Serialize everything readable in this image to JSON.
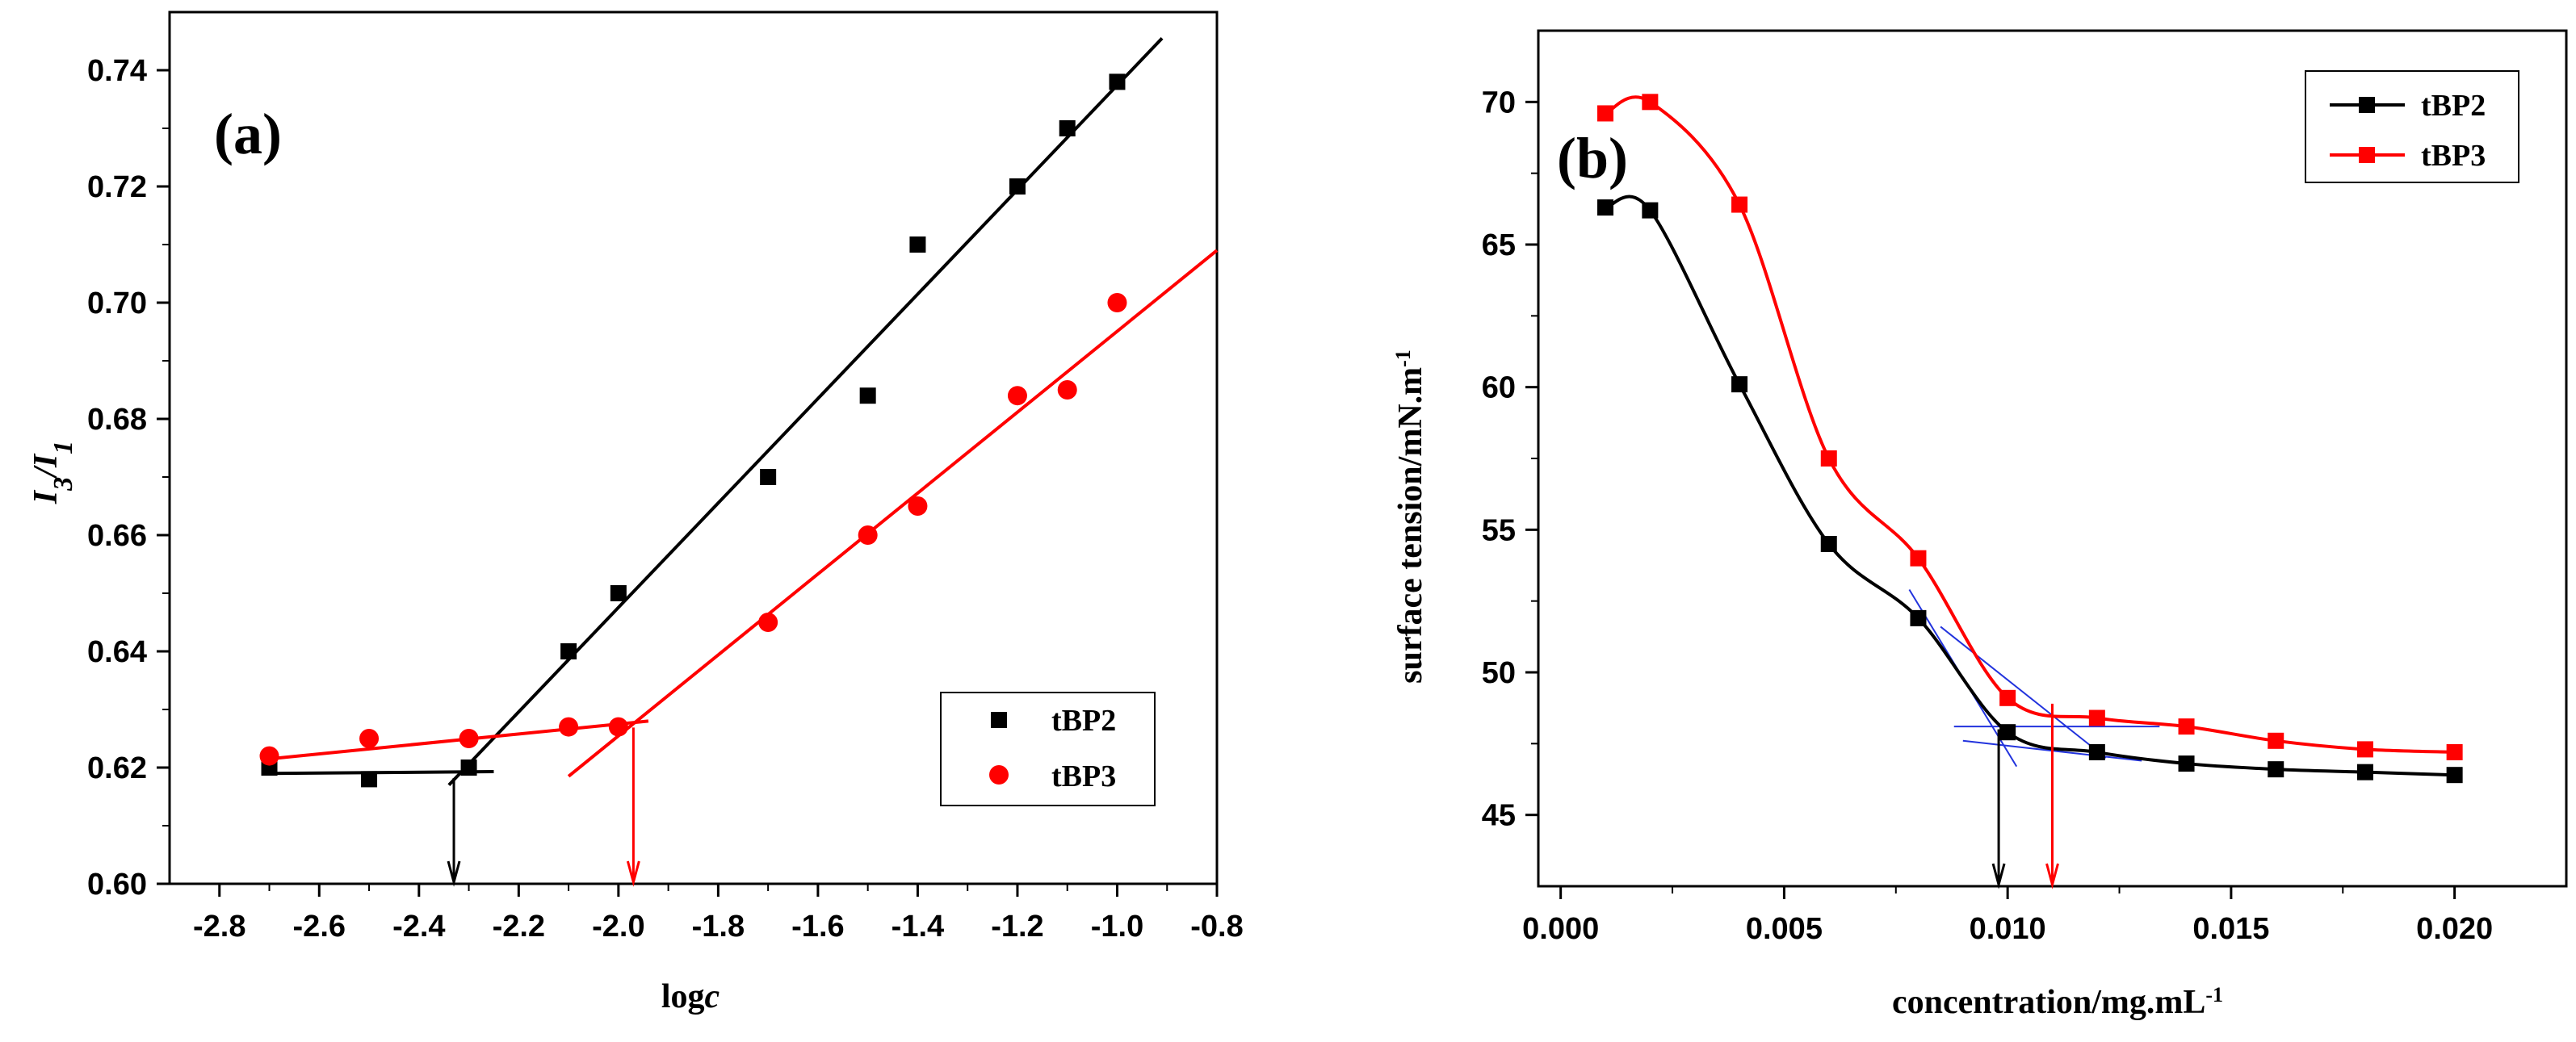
{
  "chart_data": [
    {
      "type": "scatter",
      "panel_label": "(a)",
      "xlabel": "logc",
      "ylabel": "I3/I1",
      "xlim": [
        -2.9,
        -0.8
      ],
      "ylim": [
        0.6,
        0.75
      ],
      "xticks": [
        -2.8,
        -2.6,
        -2.4,
        -2.2,
        -2.0,
        -1.8,
        -1.6,
        -1.4,
        -1.2,
        -1.0,
        -0.8
      ],
      "xtick_labels": [
        "-2.8",
        "-2.6",
        "-2.4",
        "-2.2",
        "-2.0",
        "-1.8",
        "-1.6",
        "-1.4",
        "-1.2",
        "-1.0",
        "-0.8"
      ],
      "yticks": [
        0.6,
        0.62,
        0.64,
        0.66,
        0.68,
        0.7,
        0.72,
        0.74
      ],
      "ytick_labels": [
        "0.60",
        "0.62",
        "0.64",
        "0.66",
        "0.68",
        "0.70",
        "0.72",
        "0.74"
      ],
      "legend": {
        "position": "bottom-right",
        "entries": [
          "tBP2",
          "tBP3"
        ]
      },
      "series": [
        {
          "name": "tBP2",
          "color": "#000000",
          "marker": "square",
          "x": [
            -2.7,
            -2.5,
            -2.3,
            -2.1,
            -2.0,
            -1.7,
            -1.5,
            -1.4,
            -1.2,
            -1.1,
            -1.0
          ],
          "y": [
            0.62,
            0.618,
            0.62,
            0.64,
            0.65,
            0.67,
            0.684,
            0.71,
            0.72,
            0.73,
            0.738
          ],
          "fit_lines": [
            {
              "x": [
                -2.7,
                -2.25
              ],
              "y": [
                0.619,
                0.6193
              ]
            },
            {
              "x": [
                -2.34,
                -0.91
              ],
              "y": [
                0.617,
                0.7455
              ]
            }
          ]
        },
        {
          "name": "tBP3",
          "color": "#ff0000",
          "marker": "circle",
          "x": [
            -2.7,
            -2.5,
            -2.3,
            -2.1,
            -2.0,
            -1.7,
            -1.5,
            -1.4,
            -1.2,
            -1.1,
            -1.0
          ],
          "y": [
            0.622,
            0.625,
            0.625,
            0.627,
            0.627,
            0.645,
            0.66,
            0.665,
            0.684,
            0.685,
            0.7
          ],
          "fit_lines": [
            {
              "x": [
                -2.7,
                -1.94
              ],
              "y": [
                0.6215,
                0.628
              ]
            },
            {
              "x": [
                -2.1,
                -0.8
              ],
              "y": [
                0.6185,
                0.709
              ]
            }
          ]
        }
      ],
      "arrows": [
        {
          "x": -2.33,
          "color": "#000000"
        },
        {
          "x": -1.97,
          "color": "#ff0000"
        }
      ]
    },
    {
      "type": "line",
      "panel_label": "(b)",
      "xlabel": "concentration/mg.mL-1",
      "ylabel": "surface tension/mN.m-1",
      "xlim": [
        -0.0005,
        0.0225
      ],
      "ylim": [
        42.5,
        72.5
      ],
      "xticks": [
        0.0,
        0.005,
        0.01,
        0.015,
        0.02
      ],
      "xtick_labels": [
        "0.000",
        "0.005",
        "0.010",
        "0.015",
        "0.020"
      ],
      "yticks": [
        45,
        50,
        55,
        60,
        65,
        70
      ],
      "ytick_labels": [
        "45",
        "50",
        "55",
        "60",
        "65",
        "70"
      ],
      "legend": {
        "position": "top-right",
        "entries": [
          "tBP2",
          "tBP3"
        ]
      },
      "series": [
        {
          "name": "tBP2",
          "color": "#000000",
          "marker": "square",
          "x": [
            0.001,
            0.002,
            0.004,
            0.006,
            0.008,
            0.01,
            0.012,
            0.014,
            0.016,
            0.018,
            0.02
          ],
          "y": [
            66.3,
            66.2,
            60.1,
            54.5,
            51.9,
            47.9,
            47.2,
            46.8,
            46.6,
            46.5,
            46.4
          ]
        },
        {
          "name": "tBP3",
          "color": "#ff0000",
          "marker": "square",
          "x": [
            0.001,
            0.002,
            0.004,
            0.006,
            0.008,
            0.01,
            0.012,
            0.014,
            0.016,
            0.018,
            0.02
          ],
          "y": [
            69.6,
            70.0,
            66.4,
            57.5,
            54.0,
            49.1,
            48.4,
            48.1,
            47.6,
            47.3,
            47.2
          ]
        }
      ],
      "tangent_lines": [
        {
          "x": [
            0.0078,
            0.0102
          ],
          "y": [
            52.9,
            46.7
          ]
        },
        {
          "x": [
            0.0085,
            0.0122
          ],
          "y": [
            51.6,
            47.0
          ]
        },
        {
          "x": [
            0.0088,
            0.0134
          ],
          "y": [
            48.1,
            48.1
          ]
        },
        {
          "x": [
            0.009,
            0.013
          ],
          "y": [
            47.6,
            46.9
          ]
        }
      ],
      "arrows": [
        {
          "x": 0.0098,
          "color": "#000000"
        },
        {
          "x": 0.011,
          "color": "#ff0000"
        }
      ]
    }
  ]
}
